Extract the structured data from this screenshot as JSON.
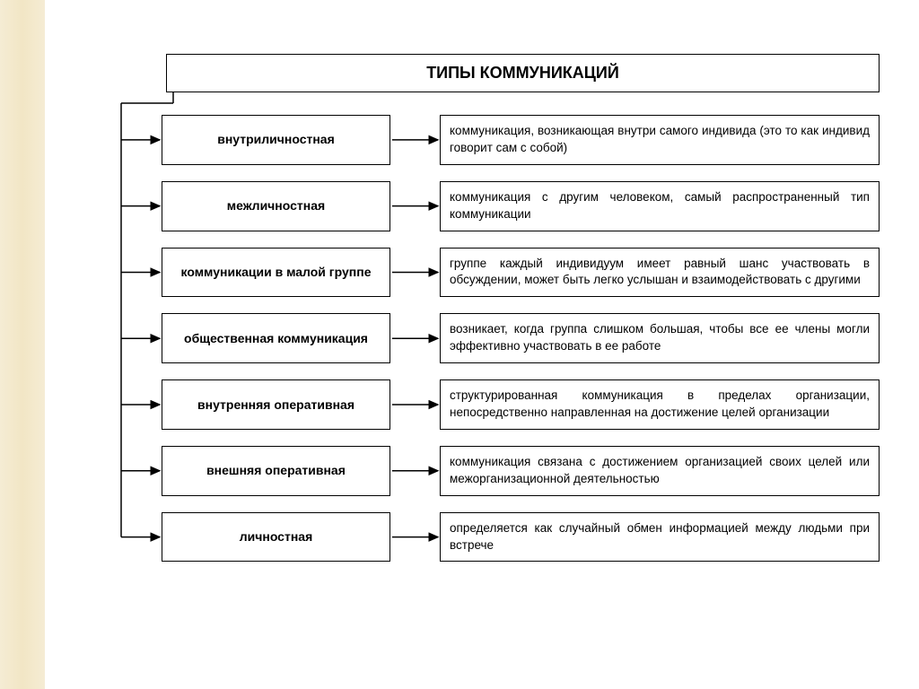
{
  "diagram": {
    "type": "tree",
    "title": "ТИПЫ КОММУНИКАЦИЙ",
    "title_fontsize": 18,
    "label_fontsize": 14,
    "desc_fontsize": 13.5,
    "background_color": "#ffffff",
    "border_color": "#000000",
    "sidebar_color": "#f2e6c5",
    "arrow_color": "#000000",
    "box_border_width": 1.5,
    "rows": [
      {
        "label": "внутриличностная",
        "desc": "коммуникация, возникающая внутри самого индивида (это то как индивид говорит сам с собой)"
      },
      {
        "label": "межличностная",
        "desc": "коммуникация с другим человеком, самый распространенный тип коммуникации"
      },
      {
        "label": "коммуникации в малой группе",
        "desc": "группе каждый индивидуум имеет равный шанс участвовать в обсуждении, может быть легко услышан и взаимодействовать с другими"
      },
      {
        "label": "общественная коммуникация",
        "desc": "возникает, когда группа слишком большая, чтобы все ее члены могли эффективно участвовать в ее работе"
      },
      {
        "label": "внутренняя оперативная",
        "desc": "структурированная коммуникация в пределах организации, непосредственно направленная на достижение целей организации"
      },
      {
        "label": "внешняя оперативная",
        "desc": "коммуникация связана с достижением организацией своих целей или межорганизационной деятельностью"
      },
      {
        "label": "личностная",
        "desc": "определяется как случайный обмен информацией между людьми при встрече"
      }
    ]
  }
}
